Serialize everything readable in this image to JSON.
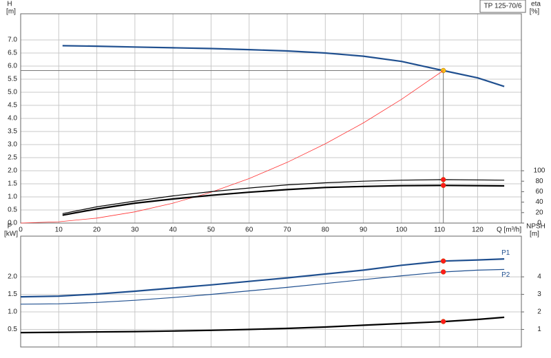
{
  "chart_data": [
    {
      "type": "line",
      "title": "TP 125-70/6",
      "ylabel": "H",
      "yunit": "[m]",
      "y2label": "eta",
      "y2unit": "[%]",
      "xlabel": "Q [m³/h]",
      "xlim": [
        0,
        131.5
      ],
      "xticks": [
        0,
        10,
        20,
        30,
        40,
        50,
        60,
        70,
        80,
        90,
        100,
        110,
        120
      ],
      "ylim": [
        0,
        8
      ],
      "yticks": [
        {
          "value": 0,
          "label": "0.0"
        },
        0.5,
        {
          "value": 1,
          "label": "1.0"
        },
        1.5,
        {
          "value": 2,
          "label": "2.0"
        },
        2.5,
        {
          "value": 3,
          "label": "3.0"
        },
        3.5,
        {
          "value": 4,
          "label": "4.0"
        },
        4.5,
        {
          "value": 5,
          "label": "5.0"
        },
        5.5,
        {
          "value": 6,
          "label": "6.0"
        },
        6.5,
        {
          "value": 7,
          "label": "7.0"
        }
      ],
      "y2lim": [
        0,
        400
      ],
      "y2ticks": [
        0,
        20,
        40,
        60,
        80,
        100
      ],
      "grid": true,
      "duty_q": 111,
      "crosshair": true,
      "series": [
        {
          "color": "#1f4f8f",
          "line_width": 2.2,
          "marker_color": "#f5c518",
          "x": [
            11,
            20,
            30,
            40,
            50,
            60,
            70,
            80,
            90,
            100,
            111,
            120,
            127
          ],
          "values": [
            6.78,
            6.76,
            6.73,
            6.7,
            6.67,
            6.63,
            6.58,
            6.5,
            6.38,
            6.18,
            5.83,
            5.55,
            5.22
          ]
        },
        {
          "color": "#ff3030",
          "line_width": 0.8,
          "x": [
            0,
            10,
            20,
            30,
            40,
            50,
            60,
            70,
            80,
            90,
            100,
            111
          ],
          "values": [
            0,
            0.05,
            0.19,
            0.43,
            0.76,
            1.18,
            1.7,
            2.32,
            3.03,
            3.83,
            4.73,
            5.83
          ]
        },
        {
          "color": "#000000",
          "line_width": 1.2,
          "axis": "y2",
          "marker_color": "#ff1a1a",
          "x": [
            11,
            20,
            30,
            40,
            50,
            60,
            70,
            80,
            90,
            100,
            111,
            127
          ],
          "values": [
            18,
            31,
            42,
            52,
            60,
            67,
            73,
            77,
            80,
            82,
            83,
            82
          ]
        },
        {
          "color": "#000000",
          "line_width": 2.2,
          "axis": "y2",
          "marker_color": "#ff1a1a",
          "x": [
            11,
            20,
            30,
            40,
            50,
            60,
            70,
            80,
            90,
            100,
            111,
            127
          ],
          "values": [
            15,
            27,
            38,
            46,
            53,
            59,
            64,
            68,
            70,
            71.5,
            72,
            71
          ]
        }
      ]
    },
    {
      "type": "line",
      "ylabel": "P",
      "yunit": "[kW]",
      "y2label": "NPSH",
      "y2unit": "[m]",
      "xlim": [
        0,
        131.5
      ],
      "xticks": [
        0,
        10,
        20,
        30,
        40,
        50,
        60,
        70,
        80,
        90,
        100,
        110,
        120
      ],
      "ylim": [
        0,
        3.16
      ],
      "yticks": [
        0.5,
        {
          "value": 1,
          "label": "1.0"
        },
        1.5,
        {
          "value": 2,
          "label": "2.0"
        }
      ],
      "y2lim": [
        0,
        6.32
      ],
      "y2ticks": [
        1,
        2,
        3,
        4
      ],
      "grid": true,
      "duty_q": 111,
      "series": [
        {
          "name": "P1",
          "color": "#1f4f8f",
          "line_width": 2.2,
          "marker_color": "#ff1a1a",
          "x": [
            0,
            10,
            20,
            30,
            40,
            50,
            60,
            70,
            80,
            90,
            100,
            111,
            120,
            127
          ],
          "values": [
            1.43,
            1.45,
            1.51,
            1.59,
            1.68,
            1.77,
            1.87,
            1.97,
            2.08,
            2.19,
            2.33,
            2.45,
            2.48,
            2.51
          ]
        },
        {
          "name": "P2",
          "color": "#1f4f8f",
          "line_width": 1.2,
          "marker_color": "#ff1a1a",
          "x": [
            0,
            10,
            20,
            30,
            40,
            50,
            60,
            70,
            80,
            90,
            100,
            111,
            120,
            127
          ],
          "values": [
            1.22,
            1.23,
            1.27,
            1.33,
            1.41,
            1.5,
            1.6,
            1.7,
            1.81,
            1.92,
            2.03,
            2.14,
            2.19,
            2.21
          ]
        },
        {
          "color": "#000000",
          "line_width": 2.2,
          "axis": "y2",
          "marker_color": "#ff1a1a",
          "x": [
            0,
            11,
            20,
            30,
            40,
            50,
            60,
            70,
            80,
            90,
            100,
            111,
            120,
            127
          ],
          "values": [
            0.82,
            0.84,
            0.86,
            0.88,
            0.91,
            0.95,
            1.0,
            1.06,
            1.14,
            1.24,
            1.34,
            1.45,
            1.57,
            1.69
          ]
        }
      ]
    }
  ]
}
